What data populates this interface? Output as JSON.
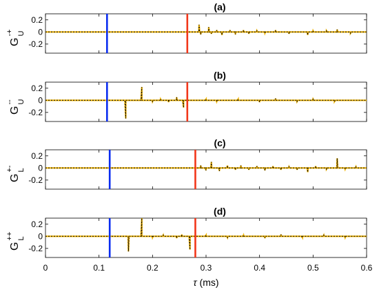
{
  "chart_data": {
    "type": "line",
    "xlabel_symbol": "τ",
    "xlabel_unit": "(ms)",
    "xlim": [
      0,
      0.6
    ],
    "xticks": [
      "0",
      "0.1",
      "0.2",
      "0.3",
      "0.4",
      "0.5",
      "0.6"
    ],
    "x_tick_values": [
      0,
      0.1,
      0.2,
      0.3,
      0.4,
      0.5,
      0.6
    ],
    "series_style": {
      "line_color": "#000000",
      "marker_color": "#f0b400",
      "line_style": "dotted"
    },
    "panels": [
      {
        "title": "(a)",
        "ylabel_base": "G",
        "ylabel_sup": "-+",
        "ylabel_sub": "U",
        "ylim": [
          -0.35,
          0.3
        ],
        "yticks": [
          "0.2",
          "0",
          "-0.2"
        ],
        "y_tick_values": [
          0.2,
          0,
          -0.2
        ],
        "blue_line_x": 0.115,
        "red_line_x": 0.265,
        "spikes": [
          [
            0.287,
            0.12
          ],
          [
            0.29,
            -0.04
          ],
          [
            0.305,
            0.08
          ],
          [
            0.31,
            -0.03
          ],
          [
            0.32,
            0.03
          ],
          [
            0.33,
            -0.05
          ],
          [
            0.345,
            0.03
          ],
          [
            0.355,
            -0.04
          ],
          [
            0.37,
            0.03
          ],
          [
            0.38,
            -0.03
          ],
          [
            0.395,
            0.02
          ],
          [
            0.41,
            -0.02
          ],
          [
            0.43,
            0.03
          ],
          [
            0.455,
            -0.03
          ],
          [
            0.49,
            -0.05
          ],
          [
            0.5,
            0.02
          ],
          [
            0.525,
            0.02
          ],
          [
            0.545,
            0.04
          ],
          [
            0.57,
            -0.02
          ]
        ]
      },
      {
        "title": "(b)",
        "ylabel_base": "G",
        "ylabel_sup": "--",
        "ylabel_sub": "U",
        "ylim": [
          -0.35,
          0.3
        ],
        "yticks": [
          "0.2",
          "0",
          "-0.2"
        ],
        "y_tick_values": [
          0.2,
          0,
          -0.2
        ],
        "blue_line_x": 0.115,
        "red_line_x": 0.265,
        "spikes": [
          [
            0.15,
            -0.3
          ],
          [
            0.18,
            0.22
          ],
          [
            0.2,
            -0.02
          ],
          [
            0.215,
            0.02
          ],
          [
            0.23,
            -0.03
          ],
          [
            0.245,
            0.05
          ],
          [
            0.258,
            -0.12
          ],
          [
            0.3,
            0.02
          ],
          [
            0.32,
            -0.02
          ],
          [
            0.36,
            0.02
          ],
          [
            0.4,
            -0.03
          ],
          [
            0.43,
            0.03
          ],
          [
            0.47,
            -0.02
          ],
          [
            0.5,
            0.02
          ],
          [
            0.54,
            -0.02
          ]
        ]
      },
      {
        "title": "(c)",
        "ylabel_base": "G",
        "ylabel_sup": "+-",
        "ylabel_sub": "L",
        "ylim": [
          -0.35,
          0.3
        ],
        "yticks": [
          "0.2",
          "0",
          "-0.2"
        ],
        "y_tick_values": [
          0.2,
          0,
          -0.2
        ],
        "blue_line_x": 0.12,
        "red_line_x": 0.28,
        "spikes": [
          [
            0.29,
            0.04
          ],
          [
            0.3,
            -0.04
          ],
          [
            0.31,
            0.1
          ],
          [
            0.325,
            -0.05
          ],
          [
            0.34,
            0.04
          ],
          [
            0.355,
            -0.03
          ],
          [
            0.365,
            0.04
          ],
          [
            0.38,
            -0.03
          ],
          [
            0.395,
            0.03
          ],
          [
            0.41,
            -0.04
          ],
          [
            0.425,
            0.03
          ],
          [
            0.44,
            -0.03
          ],
          [
            0.455,
            0.02
          ],
          [
            0.47,
            -0.03
          ],
          [
            0.49,
            -0.07
          ],
          [
            0.505,
            0.03
          ],
          [
            0.525,
            -0.02
          ],
          [
            0.545,
            0.16
          ],
          [
            0.56,
            -0.02
          ],
          [
            0.58,
            0.02
          ]
        ]
      },
      {
        "title": "(d)",
        "ylabel_base": "G",
        "ylabel_sup": "++",
        "ylabel_sub": "L",
        "ylim": [
          -0.35,
          0.3
        ],
        "yticks": [
          "0.2",
          "0",
          "-0.2"
        ],
        "y_tick_values": [
          0.2,
          0,
          -0.2
        ],
        "blue_line_x": 0.12,
        "red_line_x": 0.28,
        "spikes": [
          [
            0.155,
            -0.25
          ],
          [
            0.18,
            0.3
          ],
          [
            0.2,
            -0.02
          ],
          [
            0.22,
            0.02
          ],
          [
            0.245,
            -0.03
          ],
          [
            0.255,
            0.03
          ],
          [
            0.27,
            -0.22
          ],
          [
            0.3,
            0.02
          ],
          [
            0.34,
            -0.02
          ],
          [
            0.37,
            0.02
          ],
          [
            0.41,
            -0.03
          ],
          [
            0.44,
            0.03
          ],
          [
            0.48,
            -0.02
          ],
          [
            0.52,
            0.02
          ],
          [
            0.56,
            -0.02
          ]
        ]
      }
    ]
  }
}
